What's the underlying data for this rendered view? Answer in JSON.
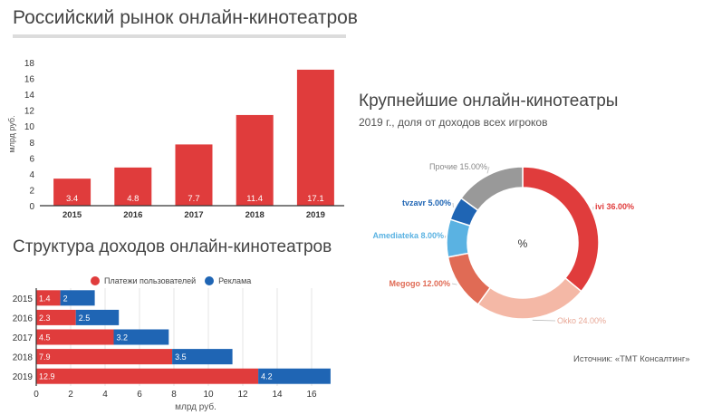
{
  "titles": {
    "market": "Российский рынок онлайн-кинотеатров",
    "structure": "Структура доходов онлайн-кинотеатров",
    "largest": "Крупнейшие онлайн-кинотеатры",
    "largest_subtitle": "2019 г., доля от доходов всех игроков"
  },
  "source": "Источник: «ТМТ Консалтинг»",
  "colors": {
    "red": "#e03c3c",
    "blue": "#1f65b4",
    "grid": "#e4e4e4",
    "axis": "#333333"
  },
  "chart_data": [
    {
      "type": "bar",
      "title": "Российский рынок онлайн-кинотеатров",
      "ylabel": "млрд руб.",
      "categories": [
        "2015",
        "2016",
        "2017",
        "2018",
        "2019"
      ],
      "values": [
        3.4,
        4.8,
        7.7,
        11.4,
        17.1
      ],
      "value_labels": [
        "3.4",
        "4.8",
        "7.7",
        "11.4",
        "17.1"
      ],
      "ylim": [
        0,
        18
      ],
      "yticks": [
        "0",
        "2",
        "4",
        "6",
        "8",
        "10",
        "12",
        "14",
        "16",
        "18"
      ],
      "grid": false
    },
    {
      "type": "bar",
      "orientation": "horizontal",
      "stacked": true,
      "title": "Структура доходов онлайн-кинотеатров",
      "xlabel": "млрд руб.",
      "categories": [
        "2015",
        "2016",
        "2017",
        "2018",
        "2019"
      ],
      "series": [
        {
          "name": "Платежи пользователей",
          "color": "#e03c3c",
          "values": [
            1.4,
            2.3,
            4.5,
            7.9,
            12.9
          ],
          "labels": [
            "1.4",
            "2.3",
            "4.5",
            "7.9",
            "12.9"
          ]
        },
        {
          "name": "Реклама",
          "color": "#1f65b4",
          "values": [
            2,
            2.5,
            3.2,
            3.5,
            4.2
          ],
          "labels": [
            "2",
            "2.5",
            "3.2",
            "3.5",
            "4.2"
          ]
        }
      ],
      "xlim": [
        0,
        18
      ],
      "xticks": [
        "0",
        "2",
        "4",
        "6",
        "8",
        "10",
        "12",
        "14",
        "16"
      ],
      "grid": true,
      "legend": "top"
    },
    {
      "type": "pie",
      "donut": true,
      "title": "Крупнейшие онлайн-кинотеатры",
      "subtitle": "2019 г., доля от доходов всех игроков",
      "center_label": "%",
      "slices": [
        {
          "name": "ivi",
          "value": 36,
          "label": "ivi 36.00%",
          "color": "#e03c3c"
        },
        {
          "name": "Okko",
          "value": 24,
          "label": "Okko 24.00%",
          "color": "#f4b8a6"
        },
        {
          "name": "Megogo",
          "value": 12,
          "label": "Megogo 12.00%",
          "color": "#e06b55"
        },
        {
          "name": "Amediateka",
          "value": 8,
          "label": "Amediateka 8.00%",
          "color": "#5ab2e2"
        },
        {
          "name": "tvzavr",
          "value": 5,
          "label": "tvzavr 5.00%",
          "color": "#1f65b4"
        },
        {
          "name": "Прочие",
          "value": 15,
          "label": "Прочие 15.00%",
          "color": "#999999"
        }
      ]
    }
  ]
}
